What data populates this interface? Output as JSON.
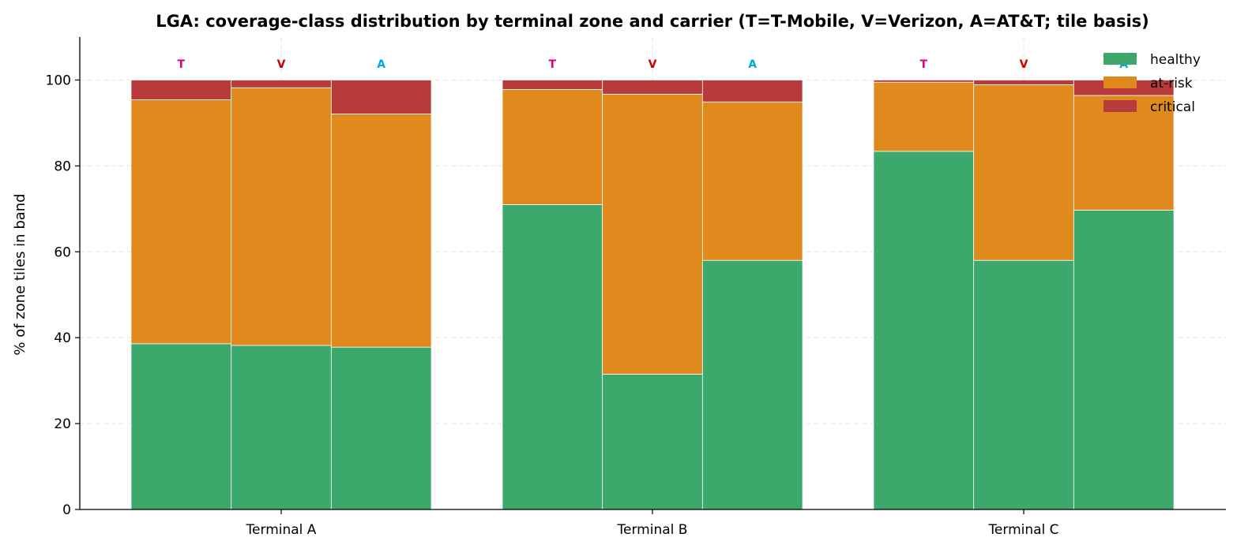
{
  "chart_data": {
    "type": "bar",
    "stacked": true,
    "grouped": true,
    "title": "LGA: coverage-class distribution by terminal zone and carrier (T=T-Mobile, V=Verizon, A=AT&T; tile basis)",
    "xlabel": "",
    "ylabel": "% of zone tiles in band",
    "ylim": [
      0,
      110
    ],
    "yticks": [
      0,
      20,
      40,
      60,
      80,
      100
    ],
    "grid": true,
    "legend_placement": "top-right",
    "categories": [
      "Terminal A",
      "Terminal B",
      "Terminal C"
    ],
    "carriers": [
      {
        "label": "T",
        "color": "#e0007a"
      },
      {
        "label": "V",
        "color": "#cc0000"
      },
      {
        "label": "A",
        "color": "#00a8e0"
      }
    ],
    "series": [
      {
        "name": "healthy",
        "color": "#3da86c",
        "values": [
          [
            38.6,
            38.2,
            37.8
          ],
          [
            71.0,
            31.5,
            58.0
          ],
          [
            83.4,
            58.0,
            69.7
          ]
        ]
      },
      {
        "name": "at-risk",
        "color": "#e0891c",
        "values": [
          [
            56.8,
            60.0,
            54.3
          ],
          [
            26.8,
            65.2,
            36.9
          ],
          [
            16.1,
            40.9,
            26.7
          ]
        ]
      },
      {
        "name": "critical",
        "color": "#b83a3a",
        "values": [
          [
            4.6,
            1.8,
            7.9
          ],
          [
            2.2,
            3.3,
            5.1
          ],
          [
            0.5,
            1.1,
            3.6
          ]
        ]
      }
    ]
  }
}
